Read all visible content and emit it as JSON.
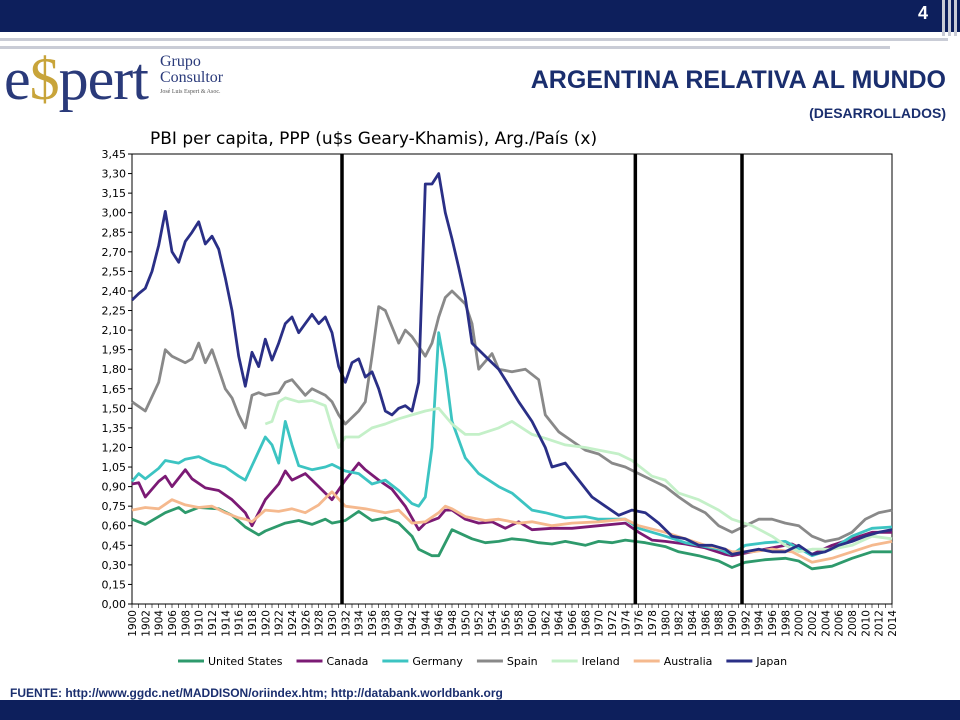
{
  "page": {
    "number": "4"
  },
  "header": {
    "title": "ARGENTINA RELATIVA AL MUNDO",
    "subtitle": "(DESARROLLADOS)"
  },
  "logo": {
    "text_pre": "e",
    "text_dollar": "$",
    "text_post": "pert",
    "line1": "Grupo",
    "line2": "Consultor",
    "line3": "José Luis Espert & Asoc."
  },
  "footer": {
    "source": "FUENTE: http://www.ggdc.net/MADDISON/oriindex.htm; http://databank.worldbank.org"
  },
  "colors": {
    "band": "#0d1f5c",
    "title": "#1a2e6e"
  },
  "chart_data": {
    "type": "line",
    "title": "PBI per capita, PPP (u$s Geary-Khamis), Arg./País (x)",
    "xlim": [
      1900,
      2014
    ],
    "ylim": [
      0,
      3.45
    ],
    "y_ticks": [
      "0,00",
      "0,15",
      "0,30",
      "0,45",
      "0,60",
      "0,75",
      "0,90",
      "1,05",
      "1,20",
      "1,35",
      "1,50",
      "1,65",
      "1,80",
      "1,95",
      "2,10",
      "2,25",
      "2,40",
      "2,55",
      "2,70",
      "2,85",
      "3,00",
      "3,15",
      "3,30",
      "3,45"
    ],
    "x_ticks": [
      "1900",
      "1902",
      "1904",
      "1906",
      "1908",
      "1910",
      "1912",
      "1914",
      "1916",
      "1918",
      "1920",
      "1922",
      "1924",
      "1926",
      "1928",
      "1930",
      "1932",
      "1934",
      "1936",
      "1938",
      "1940",
      "1942",
      "1944",
      "1946",
      "1948",
      "1950",
      "1952",
      "1954",
      "1956",
      "1958",
      "1960",
      "1962",
      "1964",
      "1966",
      "1968",
      "1970",
      "1972",
      "1974",
      "1976",
      "1978",
      "1980",
      "1982",
      "1984",
      "1986",
      "1988",
      "1990",
      "1992",
      "1994",
      "1996",
      "1998",
      "2000",
      "2002",
      "2004",
      "2006",
      "2008",
      "2010",
      "2012",
      "2014"
    ],
    "vertical_lines": [
      1930,
      1974,
      1990
    ],
    "legend_position": "bottom",
    "series": [
      {
        "name": "United States",
        "color": "#2e9a6c",
        "x": [
          1900,
          1902,
          1905,
          1907,
          1908,
          1910,
          1913,
          1915,
          1917,
          1919,
          1920,
          1923,
          1925,
          1927,
          1929,
          1930,
          1932,
          1934,
          1936,
          1938,
          1940,
          1942,
          1943,
          1945,
          1946,
          1948,
          1951,
          1953,
          1955,
          1957,
          1959,
          1961,
          1963,
          1965,
          1968,
          1970,
          1972,
          1974,
          1977,
          1980,
          1982,
          1985,
          1988,
          1990,
          1992,
          1995,
          1998,
          2000,
          2002,
          2005,
          2008,
          2011,
          2014
        ],
        "y": [
          0.65,
          0.61,
          0.7,
          0.74,
          0.7,
          0.74,
          0.73,
          0.68,
          0.59,
          0.53,
          0.56,
          0.62,
          0.64,
          0.61,
          0.65,
          0.62,
          0.64,
          0.71,
          0.64,
          0.66,
          0.62,
          0.52,
          0.42,
          0.37,
          0.37,
          0.57,
          0.5,
          0.47,
          0.48,
          0.5,
          0.49,
          0.47,
          0.46,
          0.48,
          0.45,
          0.48,
          0.47,
          0.49,
          0.47,
          0.44,
          0.4,
          0.37,
          0.33,
          0.28,
          0.32,
          0.34,
          0.35,
          0.33,
          0.27,
          0.29,
          0.35,
          0.4,
          0.4
        ]
      },
      {
        "name": "Canada",
        "color": "#7b1a74",
        "x": [
          1900,
          1901,
          1902,
          1904,
          1905,
          1906,
          1908,
          1909,
          1911,
          1913,
          1915,
          1917,
          1918,
          1919,
          1920,
          1922,
          1923,
          1924,
          1926,
          1928,
          1929,
          1930,
          1932,
          1934,
          1935,
          1937,
          1939,
          1941,
          1943,
          1944,
          1946,
          1947,
          1948,
          1950,
          1952,
          1954,
          1956,
          1958,
          1960,
          1963,
          1966,
          1970,
          1974,
          1976,
          1978,
          1980,
          1983,
          1986,
          1989,
          1990,
          1993,
          1996,
          1999,
          2002,
          2005,
          2008,
          2011,
          2014
        ],
        "y": [
          0.92,
          0.93,
          0.82,
          0.94,
          0.98,
          0.9,
          1.03,
          0.96,
          0.89,
          0.87,
          0.8,
          0.7,
          0.6,
          0.7,
          0.8,
          0.92,
          1.02,
          0.95,
          1.0,
          0.9,
          0.85,
          0.8,
          0.95,
          1.08,
          1.03,
          0.95,
          0.88,
          0.75,
          0.57,
          0.62,
          0.66,
          0.72,
          0.72,
          0.65,
          0.62,
          0.63,
          0.58,
          0.63,
          0.57,
          0.58,
          0.58,
          0.6,
          0.62,
          0.55,
          0.49,
          0.48,
          0.46,
          0.43,
          0.38,
          0.37,
          0.4,
          0.43,
          0.46,
          0.38,
          0.45,
          0.5,
          0.55,
          0.55
        ]
      },
      {
        "name": "Germany",
        "color": "#3cc4c2",
        "x": [
          1900,
          1901,
          1902,
          1904,
          1905,
          1907,
          1908,
          1910,
          1912,
          1914,
          1916,
          1917,
          1918,
          1920,
          1921,
          1922,
          1923,
          1924,
          1925,
          1927,
          1929,
          1930,
          1932,
          1934,
          1936,
          1938,
          1940,
          1942,
          1943,
          1944,
          1945,
          1946,
          1947,
          1948,
          1950,
          1952,
          1955,
          1957,
          1960,
          1962,
          1965,
          1968,
          1970,
          1974,
          1976,
          1980,
          1983,
          1985,
          1988,
          1990,
          1992,
          1995,
          1998,
          2001,
          2002,
          2005,
          2008,
          2011,
          2014
        ],
        "y": [
          0.94,
          1.0,
          0.96,
          1.04,
          1.1,
          1.08,
          1.11,
          1.13,
          1.08,
          1.05,
          0.98,
          0.95,
          1.06,
          1.28,
          1.22,
          1.08,
          1.4,
          1.22,
          1.06,
          1.03,
          1.05,
          1.07,
          1.02,
          1.0,
          0.92,
          0.95,
          0.87,
          0.77,
          0.75,
          0.82,
          1.2,
          2.08,
          1.8,
          1.4,
          1.12,
          1.0,
          0.9,
          0.85,
          0.72,
          0.7,
          0.66,
          0.67,
          0.65,
          0.65,
          0.58,
          0.52,
          0.47,
          0.45,
          0.42,
          0.38,
          0.45,
          0.47,
          0.48,
          0.4,
          0.37,
          0.42,
          0.52,
          0.58,
          0.59
        ]
      },
      {
        "name": "Spain",
        "color": "#898989",
        "x": [
          1900,
          1902,
          1904,
          1905,
          1906,
          1908,
          1909,
          1910,
          1911,
          1912,
          1913,
          1914,
          1915,
          1916,
          1917,
          1918,
          1919,
          1920,
          1922,
          1923,
          1924,
          1926,
          1927,
          1929,
          1930,
          1931,
          1932,
          1934,
          1935,
          1936,
          1937,
          1938,
          1940,
          1941,
          1942,
          1944,
          1945,
          1946,
          1947,
          1948,
          1950,
          1951,
          1952,
          1954,
          1955,
          1957,
          1959,
          1961,
          1962,
          1964,
          1966,
          1968,
          1970,
          1972,
          1974,
          1976,
          1978,
          1980,
          1982,
          1984,
          1986,
          1988,
          1990,
          1992,
          1994,
          1996,
          1998,
          2000,
          2002,
          2004,
          2006,
          2008,
          2010,
          2012,
          2014
        ],
        "y": [
          1.55,
          1.48,
          1.7,
          1.95,
          1.9,
          1.85,
          1.88,
          2.0,
          1.85,
          1.95,
          1.8,
          1.65,
          1.58,
          1.45,
          1.35,
          1.6,
          1.62,
          1.6,
          1.62,
          1.7,
          1.72,
          1.6,
          1.65,
          1.6,
          1.55,
          1.45,
          1.38,
          1.48,
          1.55,
          1.9,
          2.28,
          2.25,
          2.0,
          2.1,
          2.05,
          1.9,
          2.0,
          2.2,
          2.35,
          2.4,
          2.3,
          2.15,
          1.8,
          1.92,
          1.8,
          1.78,
          1.8,
          1.72,
          1.45,
          1.32,
          1.25,
          1.18,
          1.15,
          1.08,
          1.05,
          1.0,
          0.95,
          0.9,
          0.82,
          0.75,
          0.7,
          0.6,
          0.55,
          0.6,
          0.65,
          0.65,
          0.62,
          0.6,
          0.52,
          0.48,
          0.5,
          0.55,
          0.65,
          0.7,
          0.72
        ]
      },
      {
        "name": "Ireland",
        "color": "#c4f0c8",
        "x": [
          1920,
          1921,
          1922,
          1923,
          1925,
          1927,
          1929,
          1930,
          1931,
          1932,
          1934,
          1936,
          1938,
          1940,
          1942,
          1944,
          1946,
          1948,
          1950,
          1952,
          1955,
          1957,
          1960,
          1962,
          1965,
          1968,
          1970,
          1973,
          1975,
          1978,
          1980,
          1982,
          1985,
          1988,
          1990,
          1993,
          1996,
          1998,
          2000,
          2002,
          2005,
          2008,
          2011,
          2014
        ],
        "y": [
          1.38,
          1.4,
          1.55,
          1.58,
          1.55,
          1.56,
          1.52,
          1.35,
          1.2,
          1.28,
          1.28,
          1.35,
          1.38,
          1.42,
          1.45,
          1.48,
          1.5,
          1.38,
          1.3,
          1.3,
          1.35,
          1.4,
          1.3,
          1.27,
          1.22,
          1.2,
          1.18,
          1.15,
          1.1,
          0.98,
          0.95,
          0.85,
          0.8,
          0.72,
          0.65,
          0.6,
          0.52,
          0.45,
          0.4,
          0.42,
          0.42,
          0.45,
          0.52,
          0.5
        ]
      },
      {
        "name": "Australia",
        "color": "#f5b98e",
        "x": [
          1900,
          1902,
          1904,
          1906,
          1908,
          1910,
          1912,
          1914,
          1916,
          1917,
          1918,
          1920,
          1922,
          1924,
          1926,
          1928,
          1929,
          1930,
          1932,
          1935,
          1938,
          1940,
          1942,
          1944,
          1946,
          1947,
          1948,
          1950,
          1953,
          1955,
          1958,
          1960,
          1963,
          1966,
          1970,
          1974,
          1976,
          1980,
          1983,
          1986,
          1989,
          1990,
          1993,
          1996,
          1999,
          2002,
          2005,
          2008,
          2011,
          2014
        ],
        "y": [
          0.72,
          0.74,
          0.73,
          0.8,
          0.76,
          0.74,
          0.75,
          0.7,
          0.66,
          0.65,
          0.63,
          0.72,
          0.71,
          0.73,
          0.7,
          0.76,
          0.81,
          0.86,
          0.75,
          0.73,
          0.7,
          0.72,
          0.62,
          0.63,
          0.7,
          0.75,
          0.73,
          0.67,
          0.64,
          0.65,
          0.62,
          0.63,
          0.6,
          0.62,
          0.63,
          0.65,
          0.6,
          0.55,
          0.5,
          0.45,
          0.42,
          0.4,
          0.4,
          0.42,
          0.4,
          0.32,
          0.35,
          0.4,
          0.45,
          0.48
        ]
      },
      {
        "name": "Japan",
        "color": "#2a2f86",
        "x": [
          1900,
          1901,
          1902,
          1903,
          1904,
          1905,
          1906,
          1907,
          1908,
          1909,
          1910,
          1911,
          1912,
          1913,
          1914,
          1915,
          1916,
          1917,
          1918,
          1919,
          1920,
          1921,
          1922,
          1923,
          1924,
          1925,
          1926,
          1927,
          1928,
          1929,
          1930,
          1931,
          1932,
          1933,
          1934,
          1935,
          1936,
          1937,
          1938,
          1939,
          1940,
          1941,
          1942,
          1943,
          1944,
          1945,
          1946,
          1947,
          1948,
          1949,
          1950,
          1951,
          1952,
          1953,
          1955,
          1956,
          1958,
          1960,
          1962,
          1963,
          1965,
          1967,
          1969,
          1971,
          1973,
          1975,
          1977,
          1979,
          1981,
          1983,
          1985,
          1987,
          1989,
          1990,
          1992,
          1994,
          1996,
          1998,
          2000,
          2002,
          2004,
          2006,
          2008,
          2010,
          2012,
          2014
        ],
        "y": [
          2.33,
          2.38,
          2.42,
          2.55,
          2.75,
          3.01,
          2.7,
          2.62,
          2.78,
          2.85,
          2.93,
          2.76,
          2.82,
          2.72,
          2.5,
          2.25,
          1.9,
          1.67,
          1.93,
          1.82,
          2.03,
          1.87,
          2.0,
          2.15,
          2.2,
          2.08,
          2.15,
          2.22,
          2.15,
          2.2,
          2.08,
          1.82,
          1.7,
          1.85,
          1.88,
          1.74,
          1.78,
          1.65,
          1.48,
          1.45,
          1.5,
          1.52,
          1.48,
          1.7,
          3.22,
          3.22,
          3.3,
          3.0,
          2.8,
          2.58,
          2.35,
          2.0,
          1.95,
          1.9,
          1.8,
          1.72,
          1.55,
          1.4,
          1.2,
          1.05,
          1.08,
          0.95,
          0.82,
          0.75,
          0.68,
          0.72,
          0.7,
          0.62,
          0.52,
          0.5,
          0.45,
          0.45,
          0.42,
          0.38,
          0.4,
          0.42,
          0.4,
          0.4,
          0.45,
          0.38,
          0.4,
          0.45,
          0.48,
          0.52,
          0.55,
          0.57
        ]
      }
    ]
  }
}
